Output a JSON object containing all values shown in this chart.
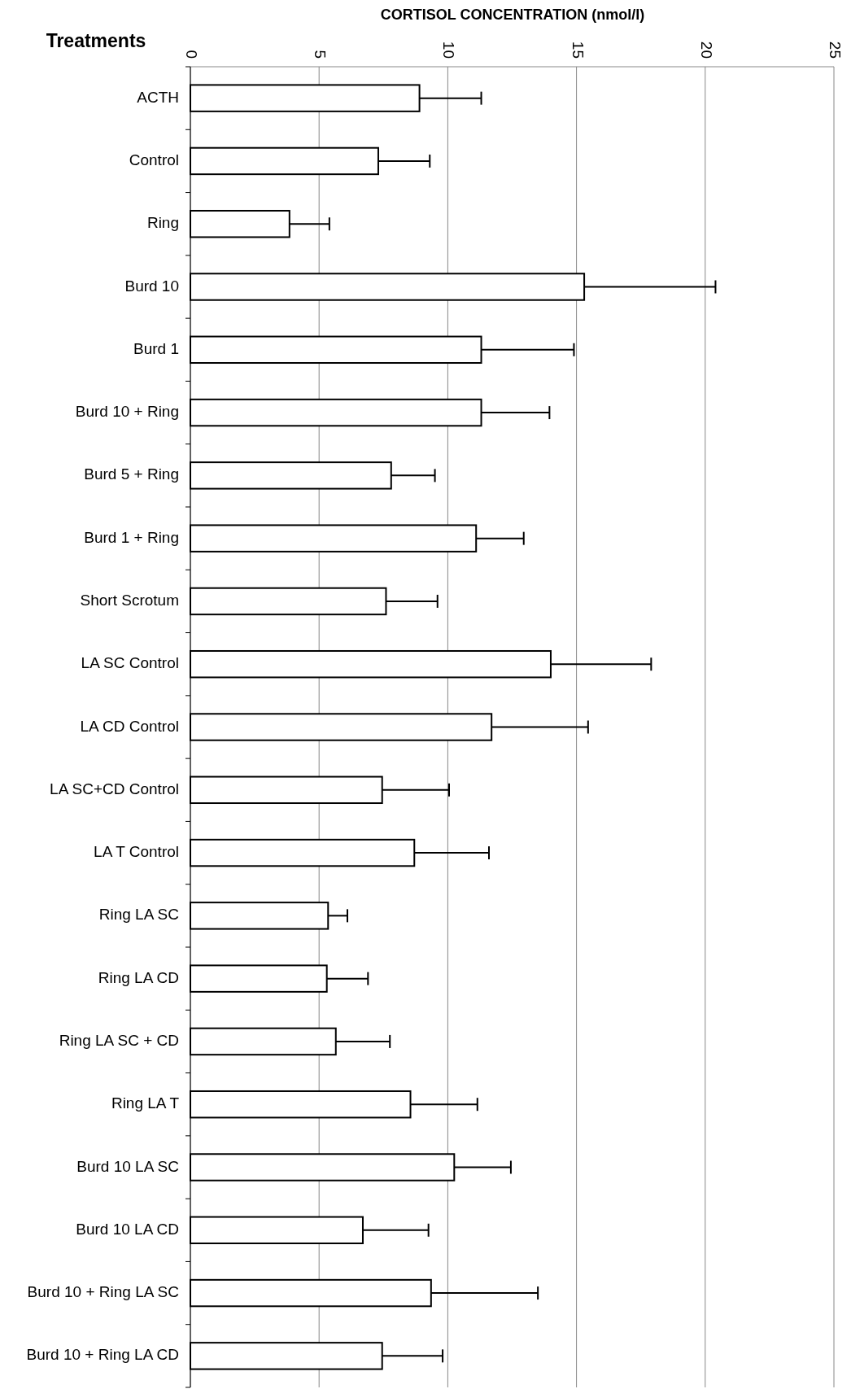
{
  "chart_data": {
    "type": "bar",
    "orientation": "horizontal",
    "xlabel": "CORTISOL CONCENTRATION (nmol/l)",
    "ylabel": "Treatments",
    "categories": [
      "ACTH",
      "Control",
      "Ring",
      "Burd 10",
      "Burd 1",
      "Burd 10 + Ring",
      "Burd 5 + Ring",
      "Burd 1 + Ring",
      "Short Scrotum",
      "LA SC Control",
      "LA CD Control",
      "LA SC+CD Control",
      "LA T Control",
      "Ring LA SC",
      "Ring LA CD",
      "Ring LA SC + CD",
      "Ring LA T",
      "Burd 10 LA SC",
      "Burd 10 LA CD",
      "Burd 10 + Ring LA SC",
      "Burd 10 + Ring LA CD"
    ],
    "values": [
      8.9,
      7.3,
      3.85,
      15.3,
      11.3,
      11.3,
      7.8,
      11.1,
      7.6,
      14.0,
      11.7,
      7.45,
      8.7,
      5.35,
      5.3,
      5.65,
      8.55,
      10.25,
      6.7,
      9.35,
      7.45
    ],
    "errors": [
      [
        8.9,
        11.3
      ],
      [
        7.3,
        9.3
      ],
      [
        3.85,
        5.4
      ],
      [
        15.3,
        20.4
      ],
      [
        11.3,
        14.9
      ],
      [
        11.3,
        13.95
      ],
      [
        7.8,
        9.5
      ],
      [
        11.1,
        12.95
      ],
      [
        7.6,
        9.6
      ],
      [
        14.0,
        17.9
      ],
      [
        11.7,
        15.45
      ],
      [
        7.45,
        10.05
      ],
      [
        8.7,
        11.6
      ],
      [
        5.35,
        6.1
      ],
      [
        5.3,
        6.9
      ],
      [
        5.65,
        7.75
      ],
      [
        8.55,
        11.15
      ],
      [
        10.25,
        12.45
      ],
      [
        6.7,
        9.25
      ],
      [
        9.35,
        13.5
      ],
      [
        7.45,
        9.8
      ]
    ],
    "color": "#ffffff",
    "xlim": [
      0,
      25
    ],
    "xticks": [
      0,
      5,
      10,
      15,
      20,
      25
    ],
    "grid": "x"
  }
}
